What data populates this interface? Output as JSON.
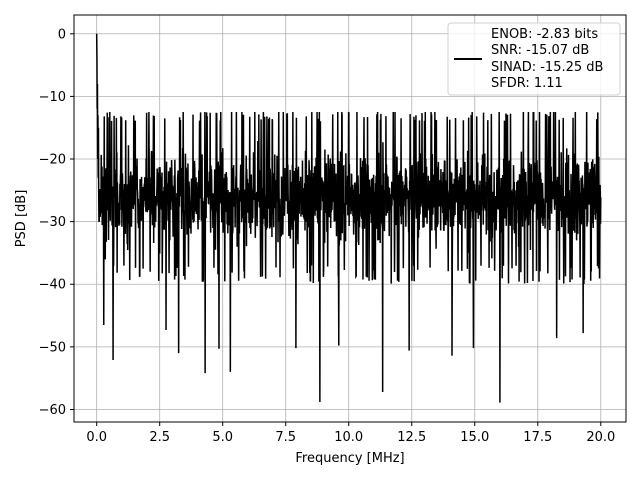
{
  "chart_data": {
    "type": "line",
    "title": "",
    "xlabel": "Frequency [MHz]",
    "ylabel": "PSD [dB]",
    "xlim": [
      -0.9,
      21.0
    ],
    "ylim": [
      -62,
      3
    ],
    "grid": true,
    "legend_placement": "top-right",
    "xticks": [
      0.0,
      2.5,
      5.0,
      7.5,
      10.0,
      12.5,
      15.0,
      17.5,
      20.0
    ],
    "xtick_labels": [
      "0.0",
      "2.5",
      "5.0",
      "7.5",
      "10.0",
      "12.5",
      "15.0",
      "17.5",
      "20.0"
    ],
    "yticks": [
      0,
      -10,
      -20,
      -30,
      -40,
      -50,
      -60
    ],
    "ytick_labels": [
      "0",
      "−10",
      "−20",
      "−30",
      "−40",
      "−50",
      "−60"
    ],
    "series": [
      {
        "name": "",
        "color": "#000000",
        "x_range": [
          0.0,
          20.0
        ],
        "num_points": 2000,
        "seed": 7,
        "noise_center_db": -26,
        "noise_spread_db": 6,
        "upper_envelope_db": -13,
        "lower_envelope_db": -37,
        "start_peak_db": 0,
        "upper_spikes": [
          {
            "x": 0.45,
            "y": -13.5
          },
          {
            "x": 1.15,
            "y": -13.8
          },
          {
            "x": 2.7,
            "y": -13.5
          },
          {
            "x": 6.75,
            "y": -13.2
          },
          {
            "x": 10.0,
            "y": -12.7
          },
          {
            "x": 11.35,
            "y": -12.8
          },
          {
            "x": 18.0,
            "y": -12.5
          }
        ],
        "deep_notches": [
          {
            "x": 0.28,
            "y": -46.5
          },
          {
            "x": 0.65,
            "y": -52.1
          },
          {
            "x": 2.75,
            "y": -47.3
          },
          {
            "x": 3.25,
            "y": -51.0
          },
          {
            "x": 4.3,
            "y": -54.2
          },
          {
            "x": 4.85,
            "y": -50.3
          },
          {
            "x": 5.3,
            "y": -54.0
          },
          {
            "x": 7.9,
            "y": -50.2
          },
          {
            "x": 8.85,
            "y": -58.8
          },
          {
            "x": 9.6,
            "y": -49.8
          },
          {
            "x": 11.35,
            "y": -57.2
          },
          {
            "x": 12.4,
            "y": -50.6
          },
          {
            "x": 14.1,
            "y": -51.4
          },
          {
            "x": 14.95,
            "y": -50.2
          },
          {
            "x": 16.0,
            "y": -58.9
          },
          {
            "x": 18.25,
            "y": -48.6
          },
          {
            "x": 19.3,
            "y": -47.8
          }
        ]
      }
    ]
  },
  "legend": {
    "lines": [
      "ENOB: -2.83 bits",
      "SNR: -15.07 dB",
      "SINAD: -15.25 dB",
      "SFDR: 1.11"
    ]
  }
}
